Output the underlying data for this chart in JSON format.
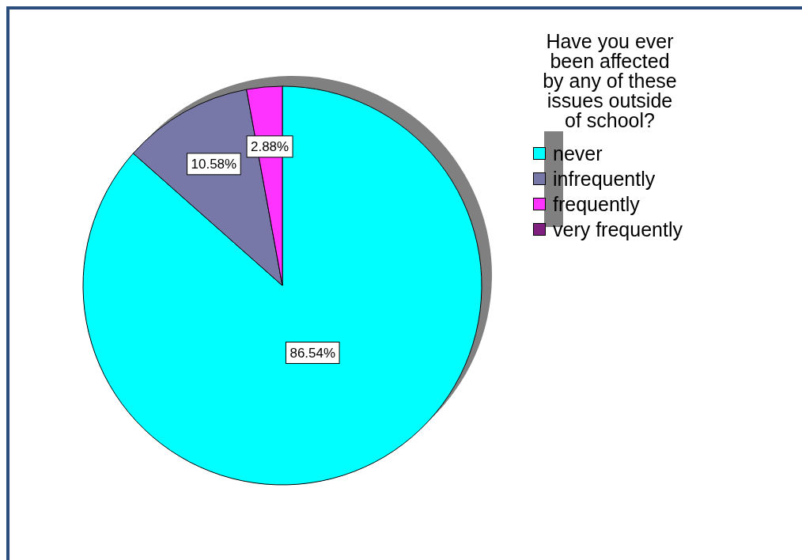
{
  "chart_data": {
    "type": "pie",
    "legend_title": "Have you ever been affected by any of these issues outside of school?",
    "categories": [
      "never",
      "infrequently",
      "frequently",
      "very frequently"
    ],
    "values": [
      86.54,
      10.58,
      2.88,
      0
    ],
    "colors": [
      "#00ffff",
      "#7878a8",
      "#ff33ff",
      "#7f1f7f"
    ],
    "value_labels": [
      "86.54%",
      "10.58%",
      "2.88%",
      null
    ],
    "legend": "top right"
  }
}
